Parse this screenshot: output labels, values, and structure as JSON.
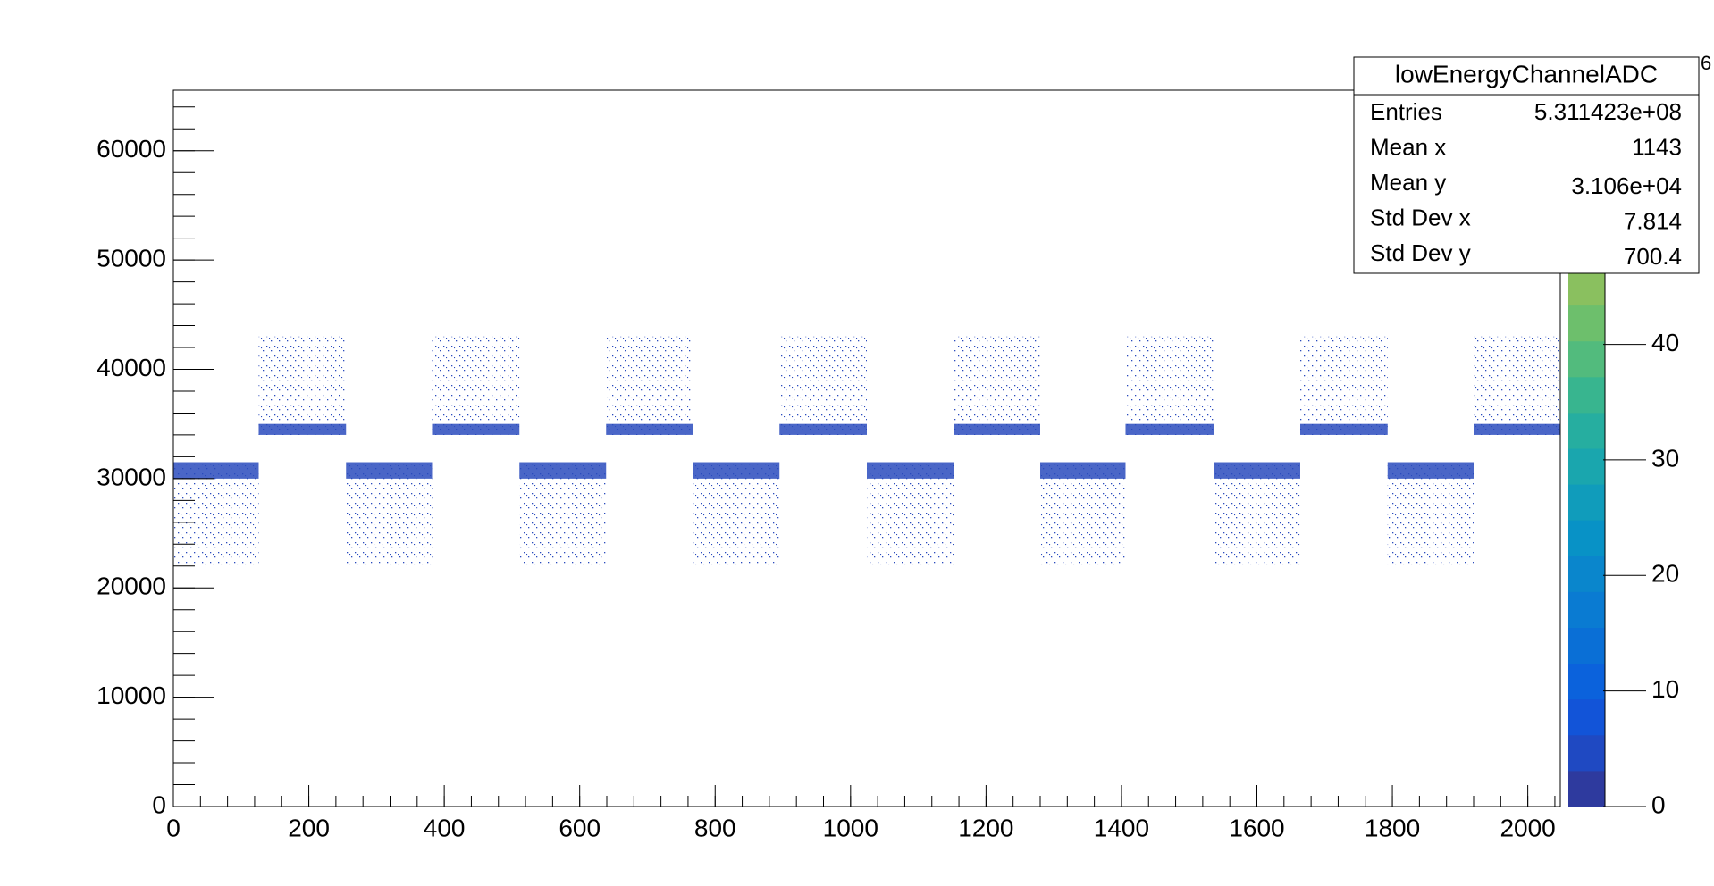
{
  "chart_data": {
    "type": "hist2d",
    "xlim": [
      0,
      2048
    ],
    "ylim": [
      0,
      65536
    ],
    "xticks": [
      0,
      200,
      400,
      600,
      800,
      1000,
      1200,
      1400,
      1600,
      1800,
      2000
    ],
    "yticks": [
      0,
      10000,
      20000,
      30000,
      40000,
      50000,
      60000
    ],
    "minor_divisions": 5,
    "color": "#2a4bbd",
    "sparse_regions": [
      {
        "x": [
          0,
          126
        ],
        "y": [
          22000,
          31500
        ]
      },
      {
        "x": [
          255,
          382
        ],
        "y": [
          22000,
          31500
        ]
      },
      {
        "x": [
          511,
          639
        ],
        "y": [
          22000,
          31500
        ]
      },
      {
        "x": [
          768,
          895
        ],
        "y": [
          22000,
          31500
        ]
      },
      {
        "x": [
          1024,
          1152
        ],
        "y": [
          22000,
          31500
        ]
      },
      {
        "x": [
          1280,
          1406
        ],
        "y": [
          22000,
          31500
        ]
      },
      {
        "x": [
          1537,
          1664
        ],
        "y": [
          22000,
          31500
        ]
      },
      {
        "x": [
          1793,
          1920
        ],
        "y": [
          22000,
          31500
        ]
      },
      {
        "x": [
          126,
          255
        ],
        "y": [
          34000,
          43000
        ]
      },
      {
        "x": [
          382,
          511
        ],
        "y": [
          34000,
          43000
        ]
      },
      {
        "x": [
          639,
          768
        ],
        "y": [
          34000,
          43000
        ]
      },
      {
        "x": [
          895,
          1024
        ],
        "y": [
          34000,
          43000
        ]
      },
      {
        "x": [
          1152,
          1280
        ],
        "y": [
          34000,
          43000
        ]
      },
      {
        "x": [
          1406,
          1537
        ],
        "y": [
          34000,
          43000
        ]
      },
      {
        "x": [
          1664,
          1793
        ],
        "y": [
          34000,
          43000
        ]
      },
      {
        "x": [
          1920,
          2048
        ],
        "y": [
          34000,
          43000
        ]
      }
    ],
    "dense_regions": [
      {
        "x": [
          0,
          126
        ],
        "y": [
          30000,
          31500
        ]
      },
      {
        "x": [
          255,
          382
        ],
        "y": [
          30000,
          31500
        ]
      },
      {
        "x": [
          511,
          639
        ],
        "y": [
          30000,
          31500
        ]
      },
      {
        "x": [
          768,
          895
        ],
        "y": [
          30000,
          31500
        ]
      },
      {
        "x": [
          1024,
          1152
        ],
        "y": [
          30000,
          31500
        ]
      },
      {
        "x": [
          1280,
          1406
        ],
        "y": [
          30000,
          31500
        ]
      },
      {
        "x": [
          1537,
          1664
        ],
        "y": [
          30000,
          31500
        ]
      },
      {
        "x": [
          1793,
          1920
        ],
        "y": [
          30000,
          31500
        ]
      },
      {
        "x": [
          126,
          255
        ],
        "y": [
          34000,
          35000
        ]
      },
      {
        "x": [
          382,
          511
        ],
        "y": [
          34000,
          35000
        ]
      },
      {
        "x": [
          639,
          768
        ],
        "y": [
          34000,
          35000
        ]
      },
      {
        "x": [
          895,
          1024
        ],
        "y": [
          34000,
          35000
        ]
      },
      {
        "x": [
          1152,
          1280
        ],
        "y": [
          34000,
          35000
        ]
      },
      {
        "x": [
          1406,
          1537
        ],
        "y": [
          34000,
          35000
        ]
      },
      {
        "x": [
          1664,
          1793
        ],
        "y": [
          34000,
          35000
        ]
      },
      {
        "x": [
          1920,
          2048
        ],
        "y": [
          34000,
          35000
        ]
      }
    ],
    "zlim": [
      0,
      62
    ],
    "zticks": [
      0,
      10,
      20,
      30,
      40
    ],
    "z_exponent": "6",
    "palette": [
      "#2e3a9e",
      "#1f49c2",
      "#1254d8",
      "#0b62dc",
      "#0a6fd6",
      "#0a7bd2",
      "#0a86cc",
      "#0892c6",
      "#109cbb",
      "#1aa6ae",
      "#26aea0",
      "#38b58f",
      "#52bb7d",
      "#6dbf6c",
      "#8ac05f",
      "#a7bf56",
      "#c1bc52",
      "#d6b84d",
      "#e7b646",
      "#f3bd3a"
    ],
    "stats": {
      "title": "lowEnergyChannelADC",
      "rows": [
        [
          "Entries",
          "5.311423e+08"
        ],
        [
          "Mean x",
          "1143"
        ],
        [
          "Mean y",
          "3.106e+04"
        ],
        [
          "Std Dev x",
          "7.814"
        ],
        [
          "Std Dev y",
          "700.4"
        ]
      ]
    }
  }
}
